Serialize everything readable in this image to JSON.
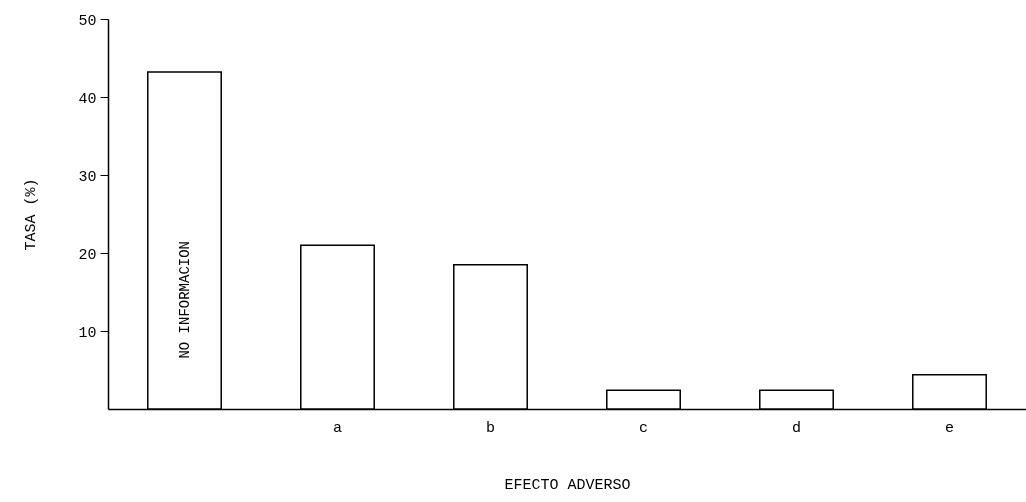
{
  "chart_data": {
    "type": "bar",
    "xlabel": "EFECTO ADVERSO",
    "ylabel": "TASA (%)",
    "categories": [
      "NO INFORMACION",
      "a",
      "b",
      "c",
      "d",
      "e"
    ],
    "values": [
      43.2,
      21,
      18.5,
      2.4,
      2.4,
      4.4
    ],
    "color": "#ffffff",
    "ylim": [
      0,
      50
    ],
    "yticks": [
      10,
      20,
      30,
      40,
      50
    ],
    "grid": false
  }
}
